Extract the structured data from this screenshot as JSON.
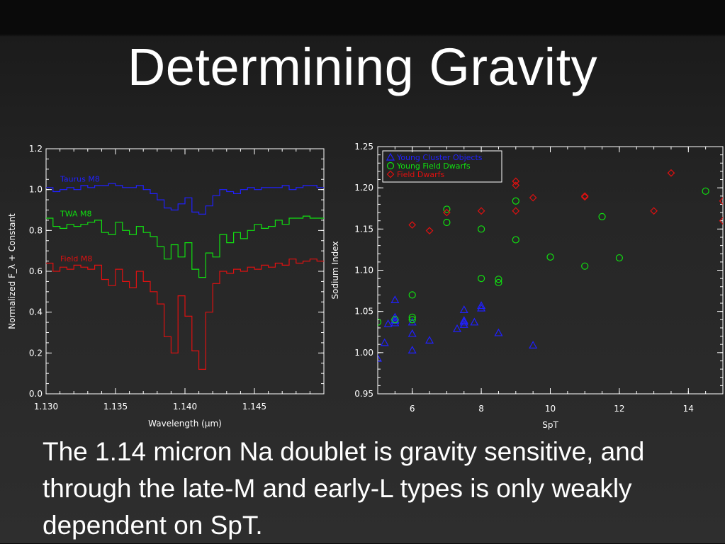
{
  "slide": {
    "title": "Determining Gravity",
    "caption": "The 1.14 micron Na doublet is gravity sensitive, and through the late-M and early-L types is only weakly dependent on SpT."
  },
  "colors": {
    "background": "#2a2a2a",
    "blue": "#2020ff",
    "green": "#10e010",
    "red": "#e01010",
    "axis": "#ffffff"
  },
  "chart_data": [
    {
      "type": "line",
      "xlabel": "Wavelength (μm)",
      "ylabel": "Normalized F_λ + Constant",
      "xlim": [
        1.13,
        1.15
      ],
      "ylim": [
        0.0,
        1.2
      ],
      "xticks": [
        "1.130",
        "1.135",
        "1.140",
        "1.145"
      ],
      "yticks": [
        "0.0",
        "0.2",
        "0.4",
        "0.6",
        "0.8",
        "1.0",
        "1.2"
      ],
      "series": [
        {
          "name": "Taurus M8",
          "color": "#2020ff",
          "x": [
            1.13,
            1.1305,
            1.131,
            1.1315,
            1.132,
            1.1325,
            1.133,
            1.1335,
            1.134,
            1.1345,
            1.135,
            1.1355,
            1.136,
            1.1365,
            1.137,
            1.1375,
            1.138,
            1.1385,
            1.139,
            1.1395,
            1.14,
            1.1405,
            1.141,
            1.1415,
            1.142,
            1.1425,
            1.143,
            1.1435,
            1.144,
            1.1445,
            1.145,
            1.1455,
            1.146,
            1.1465,
            1.147,
            1.1475,
            1.148,
            1.1485,
            1.149,
            1.1495
          ],
          "y": [
            1.01,
            0.99,
            1.0,
            1.01,
            1.0,
            1.02,
            1.01,
            1.02,
            1.02,
            1.03,
            1.02,
            1.01,
            1.01,
            1.02,
            1.0,
            0.98,
            0.95,
            0.91,
            0.9,
            0.93,
            0.96,
            0.89,
            0.88,
            0.92,
            0.97,
            1.0,
            0.99,
            0.98,
            1.0,
            1.01,
            1.0,
            1.01,
            1.01,
            1.01,
            1.02,
            1.0,
            1.01,
            1.02,
            1.02,
            1.01
          ]
        },
        {
          "name": "TWA M8",
          "color": "#10e010",
          "x": [
            1.13,
            1.1305,
            1.131,
            1.1315,
            1.132,
            1.1325,
            1.133,
            1.1335,
            1.134,
            1.1345,
            1.135,
            1.1355,
            1.136,
            1.1365,
            1.137,
            1.1375,
            1.138,
            1.1385,
            1.139,
            1.1395,
            1.14,
            1.1405,
            1.141,
            1.1415,
            1.142,
            1.1425,
            1.143,
            1.1435,
            1.144,
            1.1445,
            1.145,
            1.1455,
            1.146,
            1.1465,
            1.147,
            1.1475,
            1.148,
            1.1485,
            1.149,
            1.1495
          ],
          "y": [
            0.86,
            0.82,
            0.81,
            0.83,
            0.82,
            0.83,
            0.84,
            0.85,
            0.79,
            0.78,
            0.84,
            0.8,
            0.78,
            0.82,
            0.79,
            0.77,
            0.72,
            0.66,
            0.73,
            0.67,
            0.74,
            0.61,
            0.57,
            0.69,
            0.67,
            0.78,
            0.74,
            0.79,
            0.76,
            0.8,
            0.83,
            0.81,
            0.82,
            0.85,
            0.83,
            0.86,
            0.86,
            0.87,
            0.86,
            0.86
          ]
        },
        {
          "name": "Field M8",
          "color": "#e01010",
          "x": [
            1.13,
            1.1305,
            1.131,
            1.1315,
            1.132,
            1.1325,
            1.133,
            1.1335,
            1.134,
            1.1345,
            1.135,
            1.1355,
            1.136,
            1.1365,
            1.137,
            1.1375,
            1.138,
            1.1385,
            1.139,
            1.1395,
            1.14,
            1.1405,
            1.141,
            1.1415,
            1.142,
            1.1425,
            1.143,
            1.1435,
            1.144,
            1.1445,
            1.145,
            1.1455,
            1.146,
            1.1465,
            1.147,
            1.1475,
            1.148,
            1.1485,
            1.149,
            1.1495
          ],
          "y": [
            0.64,
            0.6,
            0.62,
            0.61,
            0.63,
            0.62,
            0.61,
            0.63,
            0.56,
            0.53,
            0.61,
            0.55,
            0.52,
            0.6,
            0.55,
            0.5,
            0.44,
            0.28,
            0.2,
            0.48,
            0.38,
            0.21,
            0.12,
            0.4,
            0.54,
            0.6,
            0.59,
            0.61,
            0.6,
            0.62,
            0.61,
            0.63,
            0.62,
            0.64,
            0.63,
            0.66,
            0.64,
            0.65,
            0.66,
            0.65
          ]
        }
      ]
    },
    {
      "type": "scatter",
      "xlabel": "SpT",
      "ylabel": "Sodium Index",
      "xlim": [
        5,
        15
      ],
      "ylim": [
        0.95,
        1.25
      ],
      "xticks": [
        "6",
        "8",
        "10",
        "12",
        "14"
      ],
      "yticks": [
        "0.95",
        "1.00",
        "1.05",
        "1.10",
        "1.15",
        "1.20",
        "1.25"
      ],
      "legend_position": "top-left",
      "series": [
        {
          "name": "Young Cluster Objects",
          "marker": "triangle",
          "color": "#2020ff",
          "x": [
            5.0,
            5.2,
            5.3,
            5.5,
            5.5,
            5.5,
            5.5,
            5.5,
            6.0,
            6.0,
            6.0,
            6.5,
            7.3,
            7.5,
            7.5,
            7.5,
            7.5,
            7.8,
            8.0,
            8.0,
            8.5,
            9.5
          ],
          "y": [
            0.993,
            1.012,
            1.035,
            1.036,
            1.039,
            1.04,
            1.043,
            1.064,
            1.037,
            1.023,
            1.003,
            1.015,
            1.029,
            1.034,
            1.037,
            1.039,
            1.052,
            1.037,
            1.054,
            1.057,
            1.024,
            1.009
          ]
        },
        {
          "name": "Young Field Dwarfs",
          "marker": "circle",
          "color": "#10e010",
          "x": [
            5.0,
            5.5,
            6.0,
            6.0,
            6.0,
            7.0,
            7.0,
            8.0,
            8.0,
            8.5,
            8.5,
            9.0,
            9.0,
            10.0,
            11.0,
            11.5,
            12.0,
            14.5
          ],
          "y": [
            1.037,
            1.04,
            1.07,
            1.043,
            1.04,
            1.174,
            1.158,
            1.15,
            1.09,
            1.089,
            1.085,
            1.137,
            1.184,
            1.116,
            1.105,
            1.165,
            1.115,
            1.196
          ]
        },
        {
          "name": "Field Dwarfs",
          "marker": "diamond",
          "color": "#e01010",
          "x": [
            6.0,
            6.5,
            7.0,
            8.0,
            9.0,
            9.0,
            9.0,
            9.5,
            11.0,
            11.0,
            13.0,
            13.5,
            15.0,
            15.0
          ],
          "y": [
            1.155,
            1.148,
            1.17,
            1.172,
            1.172,
            1.203,
            1.208,
            1.188,
            1.19,
            1.189,
            1.172,
            1.218,
            1.184,
            1.16
          ]
        }
      ]
    }
  ]
}
